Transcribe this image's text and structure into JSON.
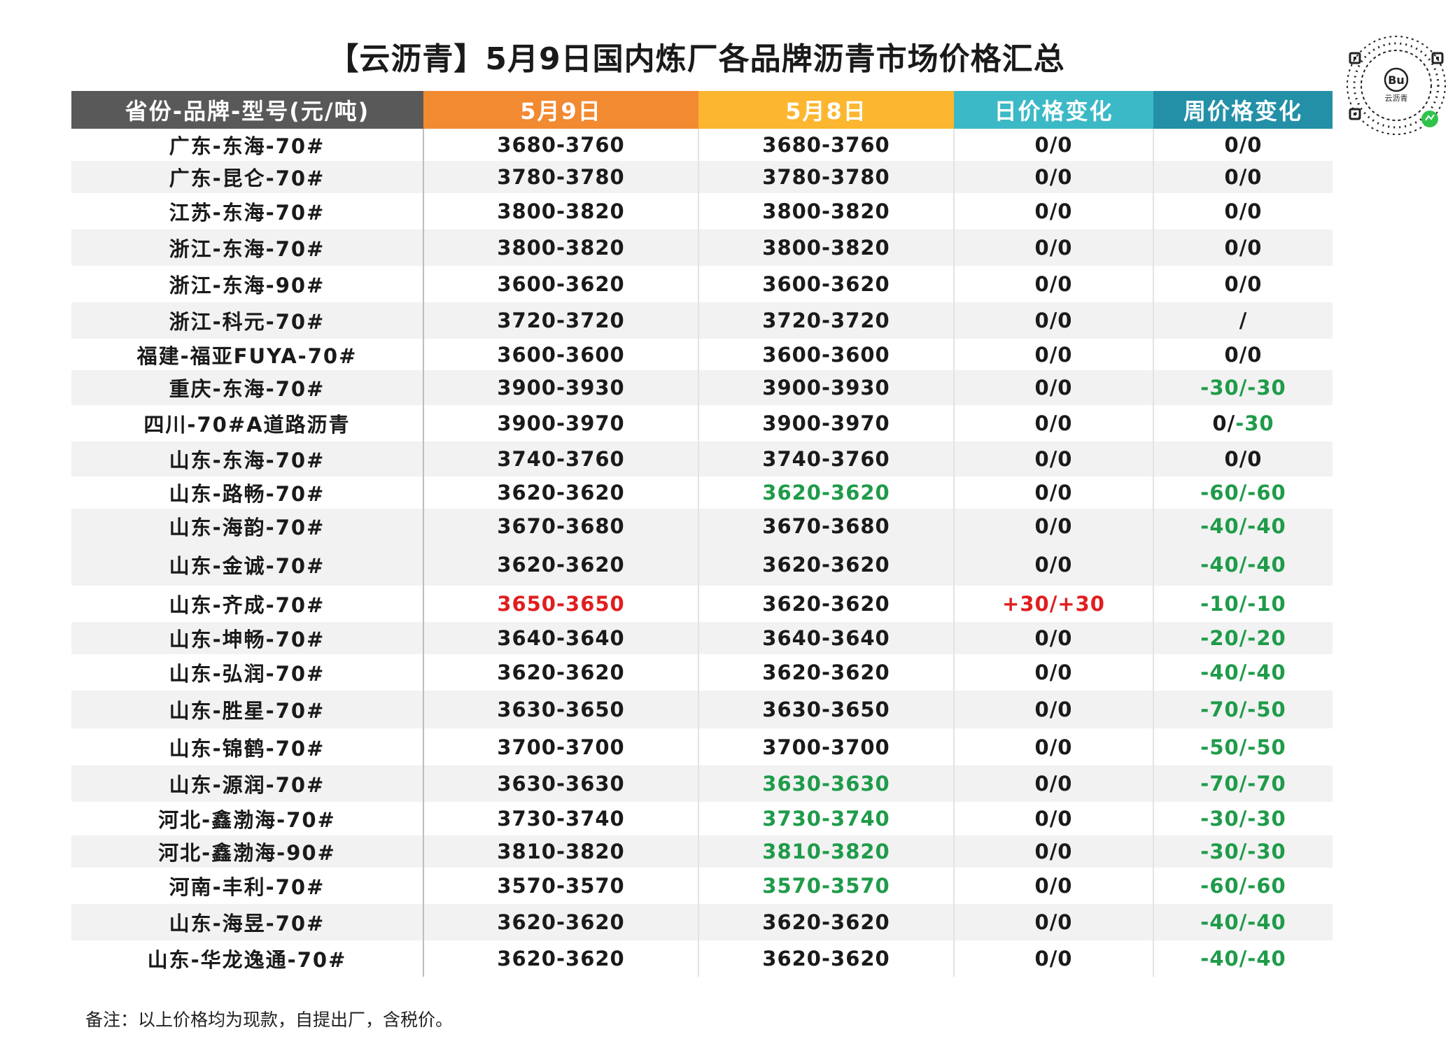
{
  "title": "【云沥青】5月9日国内炼厂各品牌沥青市场价格汇总",
  "headers": [
    "省份-品牌-型号(元/吨)",
    "5月9日",
    "5月8日",
    "日价格变化",
    "周价格变化"
  ],
  "header_colors": [
    "#595959",
    "#f28a32",
    "#fcb630",
    "#3cb9c6",
    "#2390a8"
  ],
  "qr_label": "云沥青",
  "rows": [
    {
      "name": "广东-东海-70#",
      "may9": "3680-3760",
      "may8": "3680-3760",
      "day": "0/0",
      "week": "0/0"
    },
    {
      "name": "广东-昆仑-70#",
      "may9": "3780-3780",
      "may8": "3780-3780",
      "day": "0/0",
      "week": "0/0"
    },
    {
      "name": "江苏-东海-70#",
      "may9": "3800-3820",
      "may8": "3800-3820",
      "day": "0/0",
      "week": "0/0"
    },
    {
      "name": "浙江-东海-70#",
      "may9": "3800-3820",
      "may8": "3800-3820",
      "day": "0/0",
      "week": "0/0"
    },
    {
      "name": "浙江-东海-90#",
      "may9": "3600-3620",
      "may8": "3600-3620",
      "day": "0/0",
      "week": "0/0"
    },
    {
      "name": "浙江-科元-70#",
      "may9": "3720-3720",
      "may8": "3720-3720",
      "day": "0/0",
      "week": "/"
    },
    {
      "name": "福建-福亚FUYA-70#",
      "may9": "3600-3600",
      "may8": "3600-3600",
      "day": "0/0",
      "week": "0/0"
    },
    {
      "name": "重庆-东海-70#",
      "may9": "3900-3930",
      "may8": "3900-3930",
      "day": "0/0",
      "week": "-30/-30",
      "week_color": "green"
    },
    {
      "name": "四川-70#A道路沥青",
      "may9": "3900-3970",
      "may8": "3900-3970",
      "day": "0/0",
      "week_a": "0/",
      "week_b": "-30"
    },
    {
      "name": "山东-东海-70#",
      "may9": "3740-3760",
      "may8": "3740-3760",
      "day": "0/0",
      "week": "0/0"
    },
    {
      "name": "山东-路畅-70#",
      "may9": "3620-3620",
      "may8": "3620-3620",
      "may8_color": "green",
      "day": "0/0",
      "week": "-60/-60",
      "week_color": "green"
    },
    {
      "name": "山东-海韵-70#",
      "may9": "3670-3680",
      "may8": "3670-3680",
      "day": "0/0",
      "week": "-40/-40",
      "week_color": "green"
    },
    {
      "name": "山东-金诚-70#",
      "may9": "3620-3620",
      "may8": "3620-3620",
      "day": "0/0",
      "week": "-40/-40",
      "week_color": "green"
    },
    {
      "name": "山东-齐成-70#",
      "may9": "3650-3650",
      "may9_color": "red",
      "may8": "3620-3620",
      "day": "+30/+30",
      "day_color": "red",
      "week": "-10/-10",
      "week_color": "green"
    },
    {
      "name": "山东-坤畅-70#",
      "may9": "3640-3640",
      "may8": "3640-3640",
      "day": "0/0",
      "week": "-20/-20",
      "week_color": "green"
    },
    {
      "name": "山东-弘润-70#",
      "may9": "3620-3620",
      "may8": "3620-3620",
      "day": "0/0",
      "week": "-40/-40",
      "week_color": "green"
    },
    {
      "name": "山东-胜星-70#",
      "may9": "3630-3650",
      "may8": "3630-3650",
      "day": "0/0",
      "week": "-70/-50",
      "week_color": "green"
    },
    {
      "name": "山东-锦鹤-70#",
      "may9": "3700-3700",
      "may8": "3700-3700",
      "day": "0/0",
      "week": "-50/-50",
      "week_color": "green"
    },
    {
      "name": "山东-源润-70#",
      "may9": "3630-3630",
      "may8": "3630-3630",
      "may8_color": "green",
      "day": "0/0",
      "week": "-70/-70",
      "week_color": "green"
    },
    {
      "name": "河北-鑫渤海-70#",
      "may9": "3730-3740",
      "may8": "3730-3740",
      "may8_color": "green",
      "day": "0/0",
      "week": "-30/-30",
      "week_color": "green"
    },
    {
      "name": "河北-鑫渤海-90#",
      "may9": "3810-3820",
      "may8": "3810-3820",
      "may8_color": "green",
      "day": "0/0",
      "week": "-30/-30",
      "week_color": "green"
    },
    {
      "name": "河南-丰利-70#",
      "may9": "3570-3570",
      "may8": "3570-3570",
      "may8_color": "green",
      "day": "0/0",
      "week": "-60/-60",
      "week_color": "green"
    },
    {
      "name": "山东-海昱-70#",
      "may9": "3620-3620",
      "may8": "3620-3620",
      "day": "0/0",
      "week": "-40/-40",
      "week_color": "green"
    },
    {
      "name": "山东-华龙逸通-70#",
      "may9": "3620-3620",
      "may8": "3620-3620",
      "day": "0/0",
      "week": "-40/-40",
      "week_color": "green"
    }
  ],
  "note": "备注：以上价格均为现款，自提出厂，含税价。"
}
